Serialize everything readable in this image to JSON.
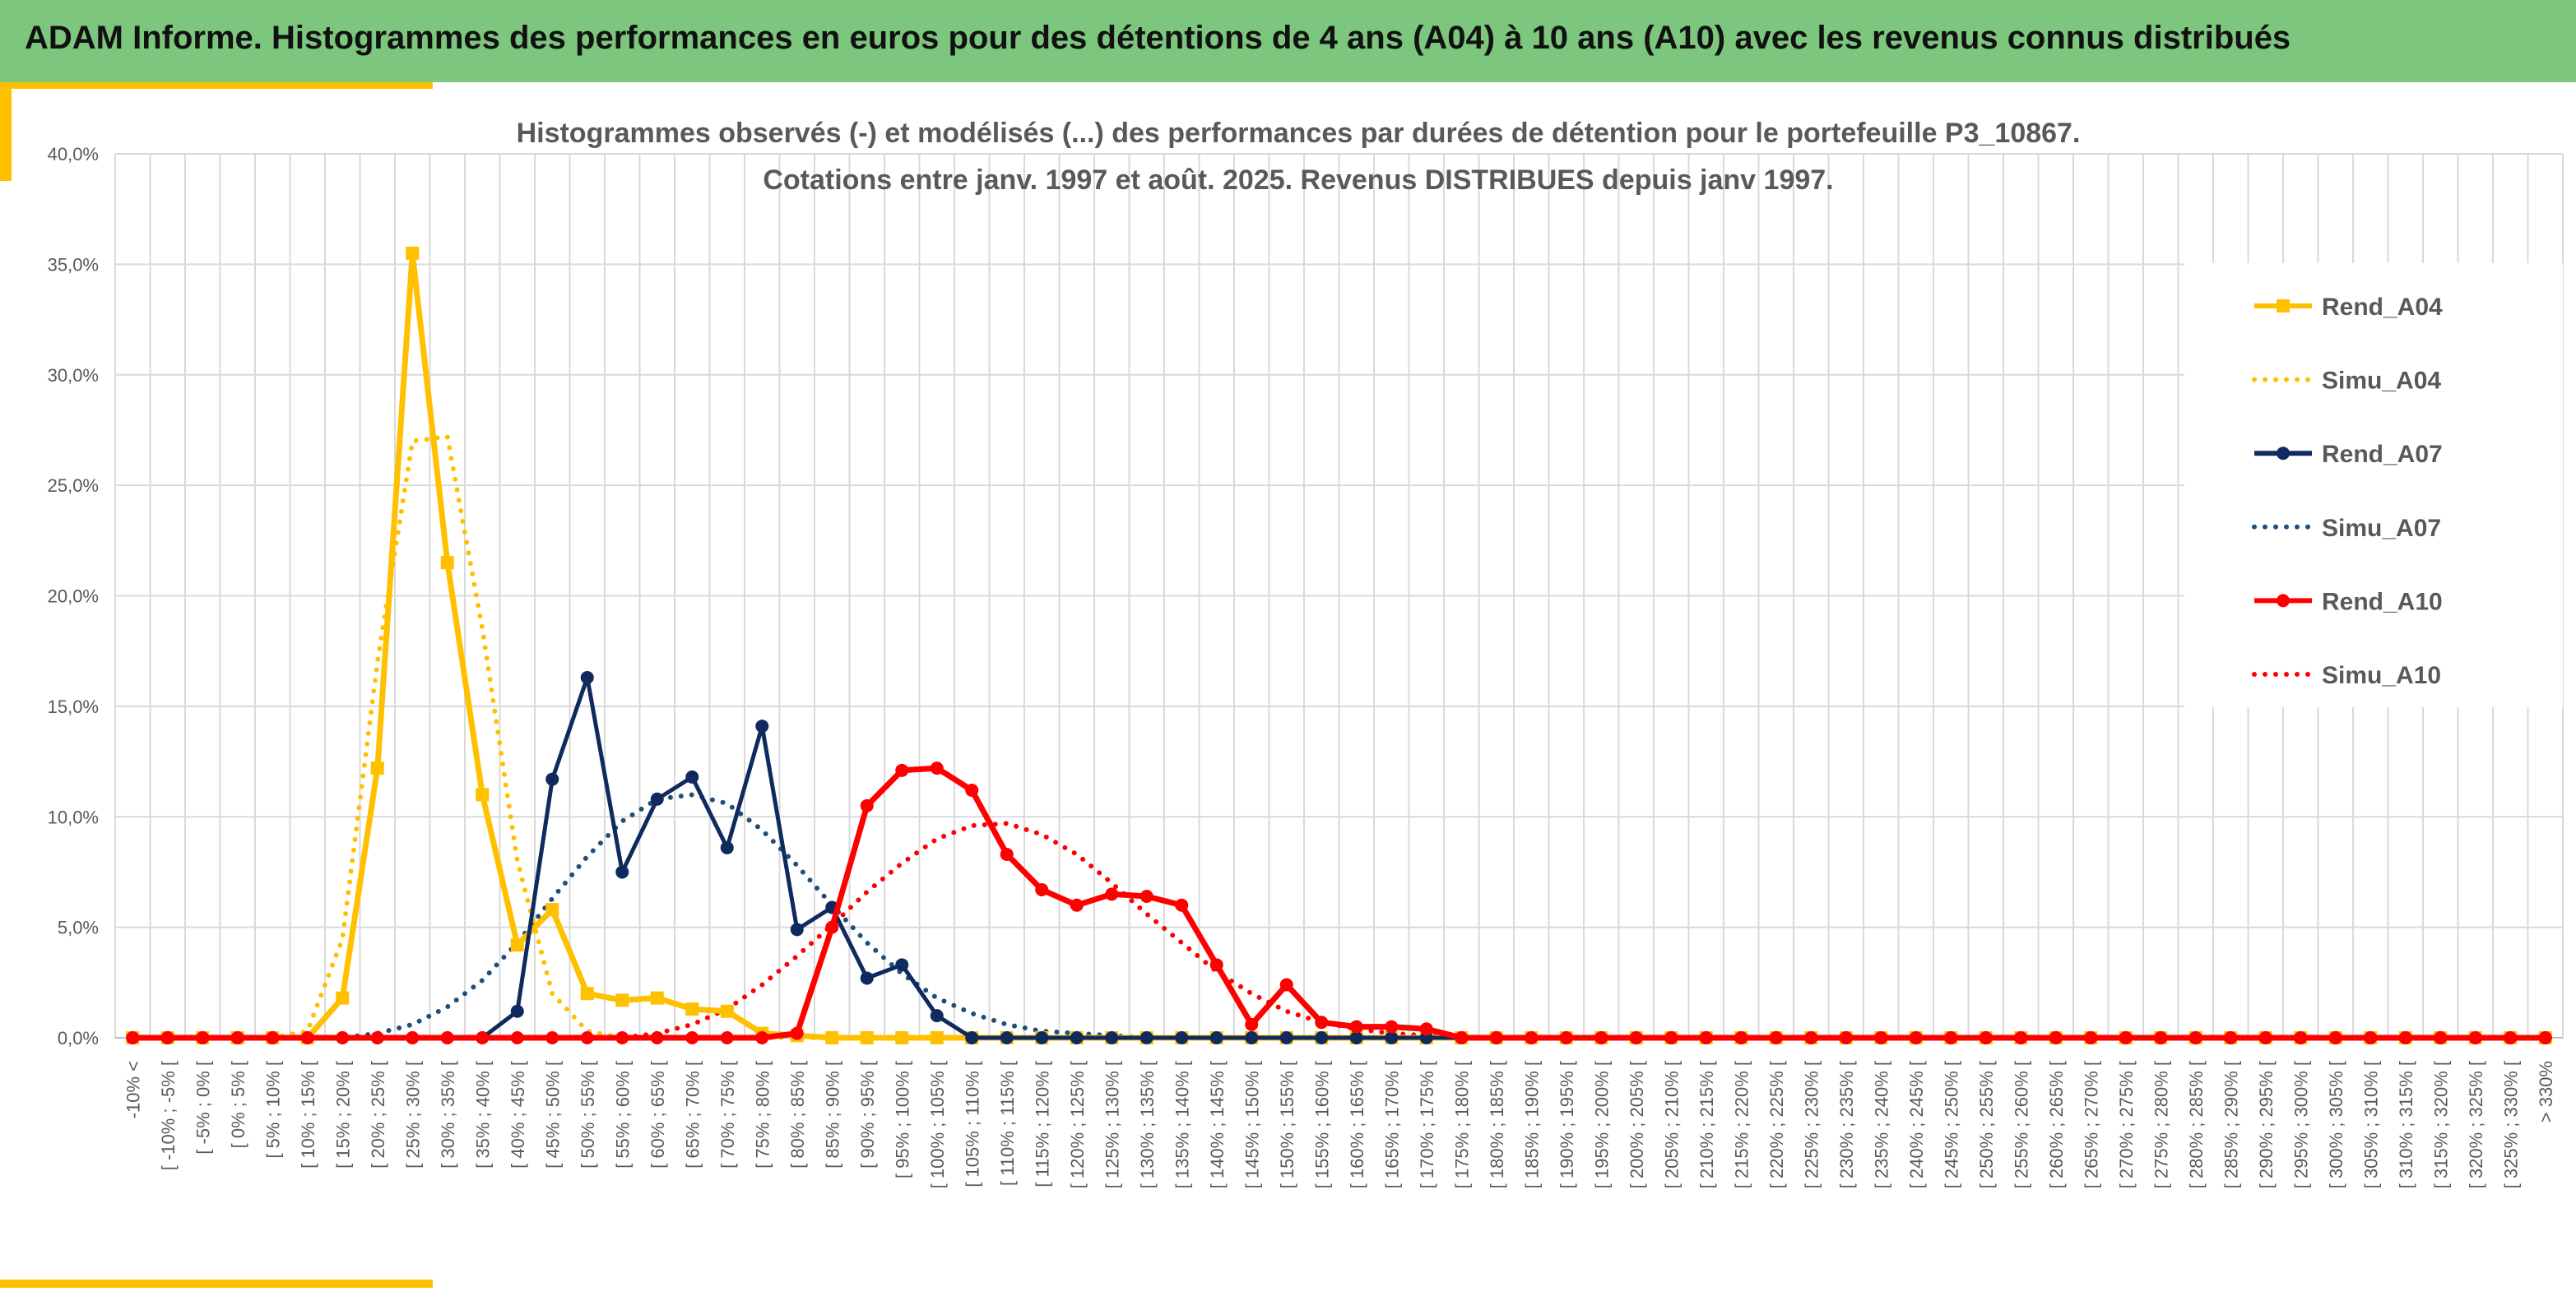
{
  "header": {
    "title": "ADAM Informe. Histogrammes des performances en euros pour des détentions de 4 ans (A04) à 10 ans (A10) avec les revenus connus distribués"
  },
  "colors": {
    "banner": "#7dc67e",
    "accent": "#ffc000",
    "a04": "#ffc000",
    "a07": "#0f2a5e",
    "a07_simu": "#1f4e79",
    "a10": "#ff0000"
  },
  "chart_data": {
    "type": "line",
    "title": "Histogrammes observés (-) et modélisés (...) des performances par durées de détention pour le portefeuille P3_10867.",
    "subtitle": "Cotations entre janv. 1997 et août. 2025. Revenus DISTRIBUES depuis janv 1997.",
    "xlabel": "",
    "ylabel": "",
    "ylim": [
      0,
      40
    ],
    "yticks": [
      "0,0%",
      "5,0%",
      "10,0%",
      "15,0%",
      "20,0%",
      "25,0%",
      "30,0%",
      "35,0%",
      "40,0%"
    ],
    "grid": true,
    "legend": "right",
    "categories": [
      "-10% <",
      "[ -10% ; -5% [",
      "[ -5% ; 0% [",
      "[ 0% ; 5% [",
      "[ 5% ; 10% [",
      "[ 10% ; 15% [",
      "[ 15% ; 20% [",
      "[ 20% ; 25% [",
      "[ 25% ; 30% [",
      "[ 30% ; 35% [",
      "[ 35% ; 40% [",
      "[ 40% ; 45% [",
      "[ 45% ; 50% [",
      "[ 50% ; 55% [",
      "[ 55% ; 60% [",
      "[ 60% ; 65% [",
      "[ 65% ; 70% [",
      "[ 70% ; 75% [",
      "[ 75% ; 80% [",
      "[ 80% ; 85% [",
      "[ 85% ; 90% [",
      "[ 90% ; 95% [",
      "[ 95% ; 100% [",
      "[ 100% ; 105% [",
      "[ 105% ; 110% [",
      "[ 110% ; 115% [",
      "[ 115% ; 120% [",
      "[ 120% ; 125% [",
      "[ 125% ; 130% [",
      "[ 130% ; 135% [",
      "[ 135% ; 140% [",
      "[ 140% ; 145% [",
      "[ 145% ; 150% [",
      "[ 150% ; 155% [",
      "[ 155% ; 160% [",
      "[ 160% ; 165% [",
      "[ 165% ; 170% [",
      "[ 170% ; 175% [",
      "[ 175% ; 180% [",
      "[ 180% ; 185% [",
      "[ 185% ; 190% [",
      "[ 190% ; 195% [",
      "[ 195% ; 200% [",
      "[ 200% ; 205% [",
      "[ 205% ; 210% [",
      "[ 210% ; 215% [",
      "[ 215% ; 220% [",
      "[ 220% ; 225% [",
      "[ 225% ; 230% [",
      "[ 230% ; 235% [",
      "[ 235% ; 240% [",
      "[ 240% ; 245% [",
      "[ 245% ; 250% [",
      "[ 250% ; 255% [",
      "[ 255% ; 260% [",
      "[ 260% ; 265% [",
      "[ 265% ; 270% [",
      "[ 270% ; 275% [",
      "[ 275% ; 280% [",
      "[ 280% ; 285% [",
      "[ 285% ; 290% [",
      "[ 290% ; 295% [",
      "[ 295% ; 300% [",
      "[ 300% ; 305% [",
      "[ 305% ; 310% [",
      "[ 310% ; 315% [",
      "[ 315% ; 320% [",
      "[ 320% ; 325% [",
      "[ 325% ; 330% [",
      "> 330%"
    ],
    "series": [
      {
        "name": "Rend_A04",
        "style": "solid",
        "marker": "square",
        "color": "#ffc000",
        "values": [
          0,
          0,
          0,
          0,
          0,
          0,
          1.8,
          12.2,
          35.5,
          21.5,
          11.0,
          4.2,
          5.8,
          2.0,
          1.7,
          1.8,
          1.3,
          1.2,
          0.2,
          0.1,
          0,
          0,
          0,
          0,
          0,
          0,
          0,
          0,
          0,
          0,
          0,
          0,
          0,
          0,
          0,
          0,
          0,
          0,
          0,
          0,
          0,
          0,
          0,
          0,
          0,
          0,
          0,
          0,
          0,
          0,
          0,
          0,
          0,
          0,
          0,
          0,
          0,
          0,
          0,
          0,
          0,
          0,
          0,
          0,
          0,
          0,
          0,
          0,
          0,
          0
        ]
      },
      {
        "name": "Simu_A04",
        "style": "dotted",
        "marker": "none",
        "color": "#ffc000",
        "values": [
          0,
          0,
          0,
          0,
          0,
          0.3,
          4.5,
          17.0,
          27.0,
          27.2,
          18.5,
          8.0,
          2.0,
          0.3,
          0,
          0,
          0,
          0,
          0,
          0,
          0,
          0,
          0,
          0,
          0,
          0,
          0,
          0,
          0,
          0,
          0,
          0,
          0,
          0,
          0,
          0,
          0,
          0,
          0,
          0,
          0,
          0,
          0,
          0,
          0,
          0,
          0,
          0,
          0,
          0,
          0,
          0,
          0,
          0,
          0,
          0,
          0,
          0,
          0,
          0,
          0,
          0,
          0,
          0,
          0,
          0,
          0,
          0,
          0,
          0
        ]
      },
      {
        "name": "Rend_A07",
        "style": "solid",
        "marker": "circle",
        "color": "#0f2a5e",
        "values": [
          0,
          0,
          0,
          0,
          0,
          0,
          0,
          0,
          0,
          0,
          0,
          1.2,
          11.7,
          16.3,
          7.5,
          10.8,
          11.8,
          8.6,
          14.1,
          4.9,
          5.9,
          2.7,
          3.3,
          1.0,
          0,
          0,
          0,
          0,
          0,
          0,
          0,
          0,
          0,
          0,
          0,
          0,
          0,
          0,
          0,
          0,
          0,
          0,
          0,
          0,
          0,
          0,
          0,
          0,
          0,
          0,
          0,
          0,
          0,
          0,
          0,
          0,
          0,
          0,
          0,
          0,
          0,
          0,
          0,
          0,
          0,
          0,
          0,
          0,
          0,
          0
        ]
      },
      {
        "name": "Simu_A07",
        "style": "dotted",
        "marker": "none",
        "color": "#1f4e79",
        "values": [
          0,
          0,
          0,
          0,
          0,
          0,
          0,
          0.2,
          0.6,
          1.4,
          2.6,
          4.3,
          6.3,
          8.2,
          9.8,
          10.8,
          11.0,
          10.6,
          9.4,
          7.8,
          6.0,
          4.3,
          2.9,
          1.8,
          1.1,
          0.6,
          0.3,
          0.2,
          0.1,
          0,
          0,
          0,
          0,
          0,
          0,
          0,
          0,
          0,
          0,
          0,
          0,
          0,
          0,
          0,
          0,
          0,
          0,
          0,
          0,
          0,
          0,
          0,
          0,
          0,
          0,
          0,
          0,
          0,
          0,
          0,
          0,
          0,
          0,
          0,
          0,
          0,
          0,
          0,
          0,
          0
        ]
      },
      {
        "name": "Rend_A10",
        "style": "solid",
        "marker": "circle",
        "color": "#ff0000",
        "values": [
          0,
          0,
          0,
          0,
          0,
          0,
          0,
          0,
          0,
          0,
          0,
          0,
          0,
          0,
          0,
          0,
          0,
          0,
          0,
          0.2,
          5.0,
          10.5,
          12.1,
          12.2,
          11.2,
          8.3,
          6.7,
          6.0,
          6.5,
          6.4,
          6.0,
          3.3,
          0.6,
          2.4,
          0.7,
          0.5,
          0.5,
          0.4,
          0,
          0,
          0,
          0,
          0,
          0,
          0,
          0,
          0,
          0,
          0,
          0,
          0,
          0,
          0,
          0,
          0,
          0,
          0,
          0,
          0,
          0,
          0,
          0,
          0,
          0,
          0,
          0,
          0,
          0,
          0,
          0
        ]
      },
      {
        "name": "Simu_A10",
        "style": "dotted",
        "marker": "none",
        "color": "#ff0000",
        "values": [
          0,
          0,
          0,
          0,
          0,
          0,
          0,
          0,
          0,
          0,
          0,
          0,
          0,
          0,
          0,
          0.2,
          0.6,
          1.3,
          2.4,
          3.7,
          5.1,
          6.6,
          7.9,
          9.0,
          9.6,
          9.7,
          9.2,
          8.3,
          7.0,
          5.6,
          4.3,
          3.0,
          2.0,
          1.2,
          0.7,
          0.4,
          0.2,
          0.1,
          0,
          0,
          0,
          0,
          0,
          0,
          0,
          0,
          0,
          0,
          0,
          0,
          0,
          0,
          0,
          0,
          0,
          0,
          0,
          0,
          0,
          0,
          0,
          0,
          0,
          0,
          0,
          0,
          0,
          0,
          0,
          0
        ]
      }
    ]
  }
}
